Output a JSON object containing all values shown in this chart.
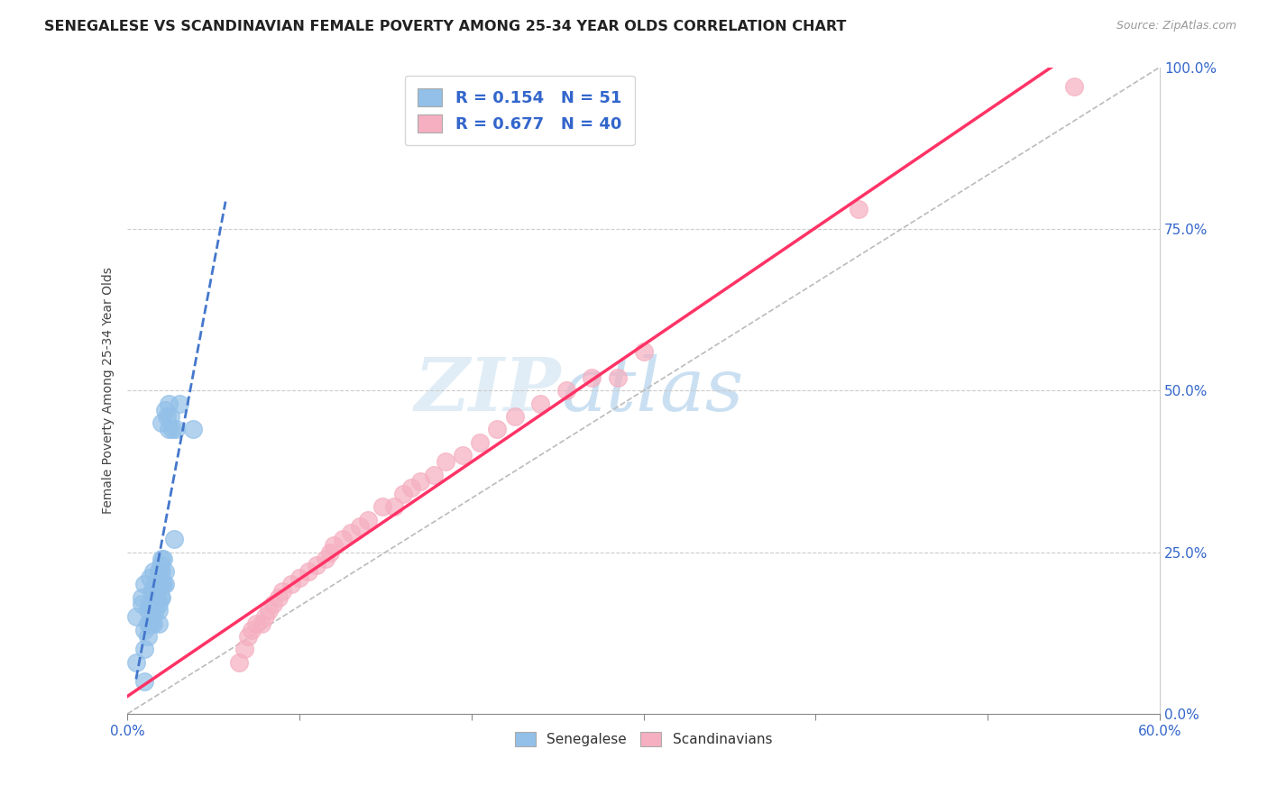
{
  "title": "SENEGALESE VS SCANDINAVIAN FEMALE POVERTY AMONG 25-34 YEAR OLDS CORRELATION CHART",
  "source": "Source: ZipAtlas.com",
  "ylabel": "Female Poverty Among 25-34 Year Olds",
  "xlim": [
    0.0,
    0.6
  ],
  "ylim": [
    0.0,
    1.0
  ],
  "xticks": [
    0.0,
    0.1,
    0.2,
    0.3,
    0.4,
    0.5,
    0.6
  ],
  "xticklabels_visible": [
    "0.0%",
    "",
    "",
    "",
    "",
    "",
    "60.0%"
  ],
  "yticks": [
    0.0,
    0.25,
    0.5,
    0.75,
    1.0
  ],
  "yticklabels": [
    "0.0%",
    "25.0%",
    "50.0%",
    "75.0%",
    "100.0%"
  ],
  "senegalese_R": 0.154,
  "senegalese_N": 51,
  "scandinavian_R": 0.677,
  "scandinavian_N": 40,
  "blue_color": "#92c0e8",
  "pink_color": "#f5afc0",
  "blue_line_color": "#4477cc",
  "pink_line_color": "#ff3366",
  "grey_line_color": "#bbbbbb",
  "watermark_zip": "ZIP",
  "watermark_atlas": "atlas",
  "title_fontsize": 11.5,
  "axis_label_fontsize": 10,
  "tick_label_fontsize": 11,
  "legend_fontsize": 13,
  "senegalese_x": [
    0.005,
    0.005,
    0.008,
    0.008,
    0.01,
    0.01,
    0.01,
    0.01,
    0.012,
    0.012,
    0.012,
    0.013,
    0.013,
    0.013,
    0.014,
    0.014,
    0.014,
    0.015,
    0.015,
    0.015,
    0.015,
    0.016,
    0.016,
    0.017,
    0.018,
    0.018,
    0.018,
    0.018,
    0.018,
    0.019,
    0.019,
    0.019,
    0.02,
    0.02,
    0.02,
    0.02,
    0.02,
    0.021,
    0.021,
    0.022,
    0.022,
    0.022,
    0.023,
    0.024,
    0.024,
    0.025,
    0.026,
    0.027,
    0.028,
    0.03,
    0.038
  ],
  "senegalese_y": [
    0.08,
    0.15,
    0.17,
    0.18,
    0.05,
    0.1,
    0.13,
    0.2,
    0.12,
    0.14,
    0.16,
    0.14,
    0.17,
    0.21,
    0.14,
    0.16,
    0.19,
    0.14,
    0.17,
    0.19,
    0.22,
    0.16,
    0.2,
    0.18,
    0.14,
    0.16,
    0.17,
    0.2,
    0.22,
    0.18,
    0.2,
    0.23,
    0.18,
    0.2,
    0.22,
    0.24,
    0.45,
    0.2,
    0.24,
    0.2,
    0.22,
    0.47,
    0.46,
    0.44,
    0.48,
    0.46,
    0.44,
    0.27,
    0.44,
    0.48,
    0.44
  ],
  "scandinavian_x": [
    0.065,
    0.068,
    0.07,
    0.072,
    0.075,
    0.078,
    0.08,
    0.082,
    0.085,
    0.088,
    0.09,
    0.095,
    0.1,
    0.105,
    0.11,
    0.115,
    0.118,
    0.12,
    0.125,
    0.13,
    0.135,
    0.14,
    0.148,
    0.155,
    0.16,
    0.165,
    0.17,
    0.178,
    0.185,
    0.195,
    0.205,
    0.215,
    0.225,
    0.24,
    0.255,
    0.27,
    0.285,
    0.3,
    0.425,
    0.55
  ],
  "scandinavian_y": [
    0.08,
    0.1,
    0.12,
    0.13,
    0.14,
    0.14,
    0.15,
    0.16,
    0.17,
    0.18,
    0.19,
    0.2,
    0.21,
    0.22,
    0.23,
    0.24,
    0.25,
    0.26,
    0.27,
    0.28,
    0.29,
    0.3,
    0.32,
    0.32,
    0.34,
    0.35,
    0.36,
    0.37,
    0.39,
    0.4,
    0.42,
    0.44,
    0.46,
    0.48,
    0.5,
    0.52,
    0.52,
    0.56,
    0.78,
    0.97
  ]
}
